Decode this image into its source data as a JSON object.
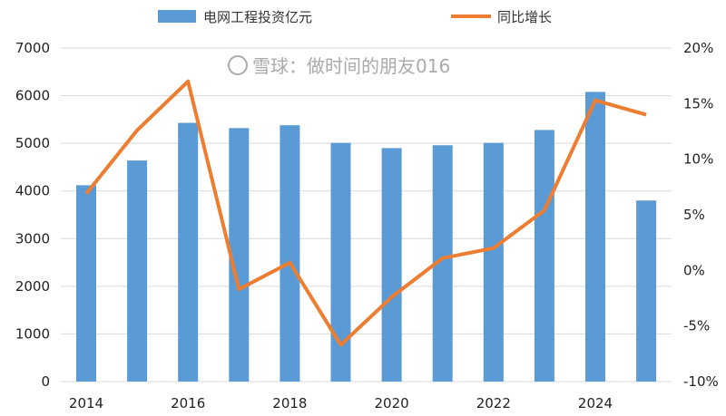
{
  "chart_data": {
    "type": "bar",
    "x": [
      2014,
      2015,
      2016,
      2017,
      2018,
      2019,
      2020,
      2021,
      2022,
      2023,
      2024,
      2025
    ],
    "x_tick_labels": [
      "2014",
      "2016",
      "2018",
      "2020",
      "2022",
      "2024"
    ],
    "series": [
      {
        "name": "电网工程投资亿元",
        "type": "bar",
        "axis": "left",
        "color": "#5B9BD5",
        "values": [
          4120,
          4640,
          5430,
          5320,
          5380,
          5010,
          4900,
          4960,
          5010,
          5280,
          6080,
          3800
        ]
      },
      {
        "name": "同比增长",
        "type": "line",
        "axis": "right",
        "color": "#ED7D31",
        "values": [
          6.9,
          12.6,
          17.0,
          -1.7,
          0.7,
          -6.7,
          -2.4,
          1.1,
          2.0,
          5.4,
          15.3,
          14.0
        ]
      }
    ],
    "left_axis": {
      "ylim": [
        0,
        7000
      ],
      "ticks": [
        "0",
        "1000",
        "2000",
        "3000",
        "4000",
        "5000",
        "6000",
        "7000"
      ]
    },
    "right_axis": {
      "ylim": [
        -10,
        20
      ],
      "ticks": [
        "-10%",
        "-5%",
        "0%",
        "5%",
        "10%",
        "15%",
        "20%"
      ]
    },
    "grid": true,
    "legend": "top"
  },
  "watermark": "雪球：做时间的朋友016"
}
